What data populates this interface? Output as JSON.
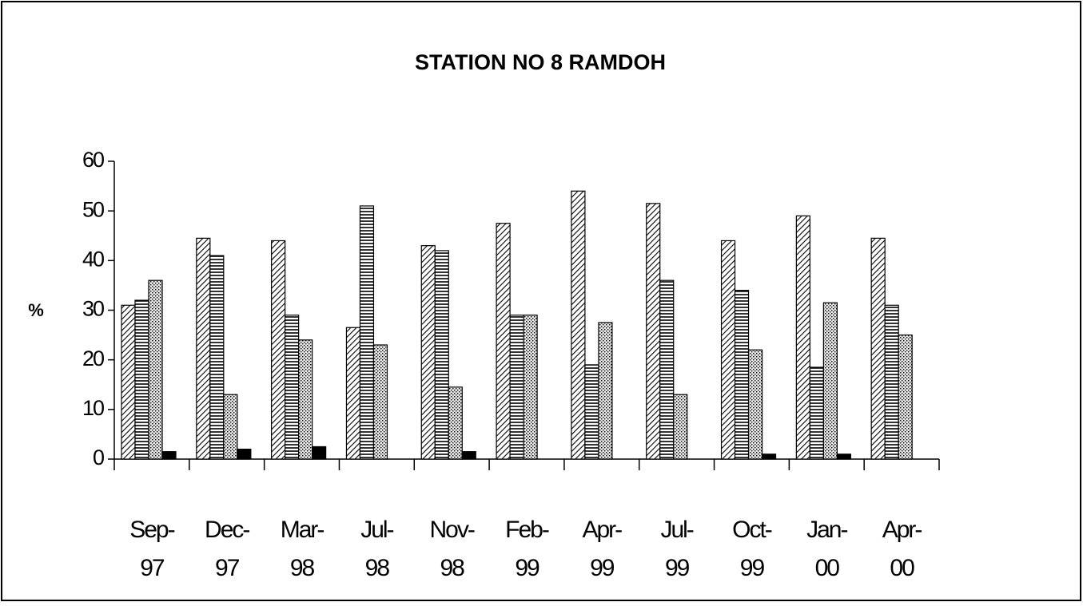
{
  "chart_data": {
    "type": "bar",
    "title": "STATION NO 8 RAMDOH",
    "ylabel": "%",
    "categories": [
      "Sep-97",
      "Dec-97",
      "Mar-98",
      "Jul-98",
      "Nov-98",
      "Feb-99",
      "Apr-99",
      "Jul-99",
      "Oct-99",
      "Jan-00",
      "Apr-00"
    ],
    "series": [
      {
        "pattern": "diagonal",
        "values": [
          31,
          44.5,
          44,
          26.5,
          43,
          47.5,
          54,
          51.5,
          44,
          49,
          44.5
        ]
      },
      {
        "pattern": "horizontal",
        "values": [
          32,
          41,
          29,
          51,
          42,
          29,
          19,
          36,
          34,
          18.5,
          31
        ]
      },
      {
        "pattern": "dotted",
        "values": [
          36,
          13,
          24,
          23,
          14.5,
          29,
          27.5,
          13,
          22,
          31.5,
          25
        ]
      },
      {
        "pattern": "solid",
        "values": [
          1.5,
          2,
          2.5,
          null,
          1.5,
          null,
          null,
          null,
          1,
          1,
          null
        ]
      }
    ],
    "ylim": [
      0,
      60
    ],
    "yticks": [
      0,
      10,
      20,
      30,
      40,
      50,
      60
    ],
    "grid": false
  }
}
